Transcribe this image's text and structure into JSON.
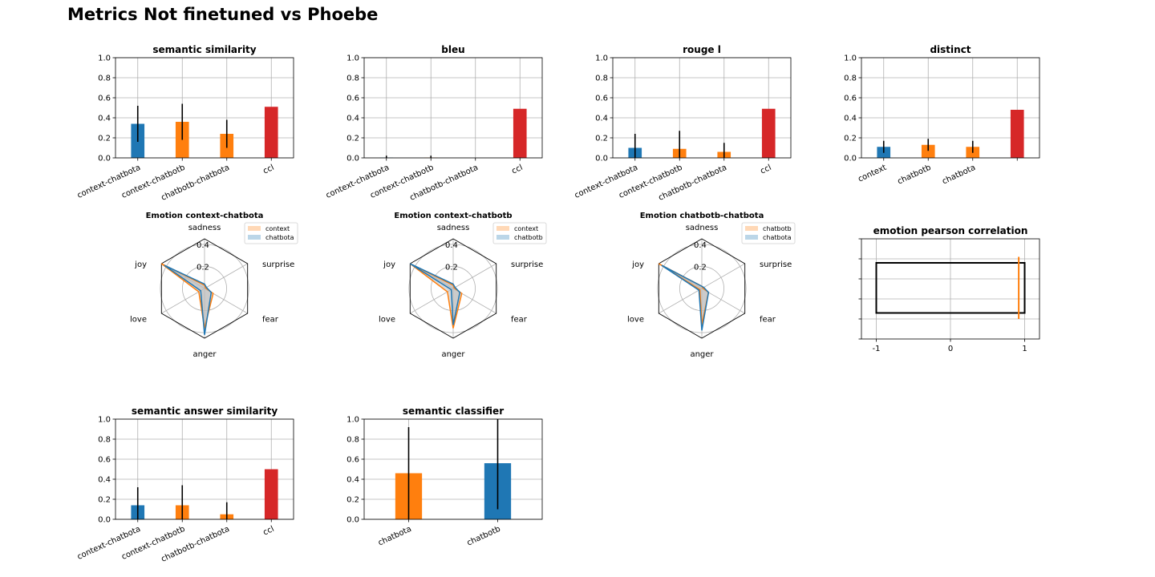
{
  "figure": {
    "title": "Metrics Not finetuned vs Phoebe"
  },
  "colors": {
    "blue": "#1f77b4",
    "orange": "#ff7f0e",
    "red": "#d62728",
    "grid": "#b0b0b0",
    "fill": "#bdbdbd"
  },
  "chart_data": [
    {
      "id": "semantic-similarity",
      "type": "bar",
      "title": "semantic similarity",
      "categories": [
        "context-chatbota",
        "context-chatbotb",
        "chatbotb-chatbota",
        "ccl"
      ],
      "values": [
        0.34,
        0.36,
        0.24,
        0.51
      ],
      "errors": [
        0.18,
        0.18,
        0.14,
        0
      ],
      "colors": [
        "blue",
        "orange",
        "orange",
        "red"
      ],
      "ylim": [
        0,
        1
      ],
      "yticks": [
        "0.0",
        "0.2",
        "0.4",
        "0.6",
        "0.8",
        "1.0"
      ],
      "grid": true
    },
    {
      "id": "bleu",
      "type": "bar",
      "title": "bleu",
      "categories": [
        "context-chatbota",
        "context-chatbotb",
        "chatbotb-chatbota",
        "ccl"
      ],
      "values": [
        0.002,
        0.002,
        0.0,
        0.49
      ],
      "errors": [
        0.02,
        0.02,
        0,
        0
      ],
      "colors": [
        "blue",
        "orange",
        "orange",
        "red"
      ],
      "ylim": [
        0,
        1
      ],
      "yticks": [
        "0.0",
        "0.2",
        "0.4",
        "0.6",
        "0.8",
        "1.0"
      ],
      "grid": true
    },
    {
      "id": "rouge-l",
      "type": "bar",
      "title": "rouge l",
      "categories": [
        "context-chatbota",
        "context-chatbotb",
        "chatbotb-chatbota",
        "ccl"
      ],
      "values": [
        0.1,
        0.09,
        0.06,
        0.49
      ],
      "errors": [
        0.14,
        0.18,
        0.09,
        0
      ],
      "colors": [
        "blue",
        "orange",
        "orange",
        "red"
      ],
      "ylim": [
        0,
        1
      ],
      "yticks": [
        "0.0",
        "0.2",
        "0.4",
        "0.6",
        "0.8",
        "1.0"
      ],
      "grid": true
    },
    {
      "id": "distinct",
      "type": "bar",
      "title": "distinct",
      "categories": [
        "context",
        "chatbotb",
        "chatbota",
        ""
      ],
      "values": [
        0.11,
        0.13,
        0.11,
        0.48
      ],
      "errors": [
        0.06,
        0.06,
        0.06,
        0
      ],
      "colors": [
        "blue",
        "orange",
        "orange",
        "red"
      ],
      "ylim": [
        0,
        1
      ],
      "yticks": [
        "0.0",
        "0.2",
        "0.4",
        "0.6",
        "0.8",
        "1.0"
      ],
      "grid": true
    },
    {
      "id": "emotion-context-chatbota",
      "type": "radar",
      "title": "Emotion context-chatbota",
      "axes": [
        "sadness",
        "surprise",
        "fear",
        "anger",
        "love",
        "joy"
      ],
      "rticks": [
        "0.2",
        "0.4"
      ],
      "rmax": 0.45,
      "series": [
        {
          "name": "context",
          "color": "orange",
          "values": [
            0.03,
            0.01,
            0.09,
            0.36,
            0.06,
            0.45
          ]
        },
        {
          "name": "chatbota",
          "color": "blue",
          "values": [
            0.04,
            0.02,
            0.07,
            0.42,
            0.04,
            0.42
          ]
        }
      ]
    },
    {
      "id": "emotion-context-chatbotb",
      "type": "radar",
      "title": "Emotion context-chatbotb",
      "axes": [
        "sadness",
        "surprise",
        "fear",
        "anger",
        "love",
        "joy"
      ],
      "rticks": [
        "0.2",
        "0.4"
      ],
      "rmax": 0.45,
      "series": [
        {
          "name": "context",
          "color": "orange",
          "values": [
            0.03,
            0.01,
            0.09,
            0.36,
            0.06,
            0.45
          ]
        },
        {
          "name": "chatbotb",
          "color": "blue",
          "values": [
            0.04,
            0.02,
            0.07,
            0.33,
            0.02,
            0.45
          ]
        }
      ]
    },
    {
      "id": "emotion-chatbotb-chatbota",
      "type": "radar",
      "title": "Emotion chatbotb-chatbota",
      "axes": [
        "sadness",
        "surprise",
        "fear",
        "anger",
        "love",
        "joy"
      ],
      "rticks": [
        "0.2",
        "0.4"
      ],
      "rmax": 0.45,
      "series": [
        {
          "name": "chatbotb",
          "color": "orange",
          "values": [
            0.02,
            0.01,
            0.07,
            0.33,
            0.02,
            0.45
          ]
        },
        {
          "name": "chatbota",
          "color": "blue",
          "values": [
            0.02,
            0.02,
            0.07,
            0.38,
            0.03,
            0.42
          ]
        }
      ]
    },
    {
      "id": "emotion-pearson-correlation",
      "type": "boxplot",
      "title": "emotion pearson correlation",
      "xlim": [
        -1.2,
        1.2
      ],
      "xticks": [
        -1,
        0,
        1
      ],
      "xticklabels": [
        "-1",
        "0",
        "1"
      ],
      "box": {
        "q1": -1.0,
        "q3": 1.0,
        "median": 0.92
      }
    },
    {
      "id": "semantic-answer-similarity",
      "type": "bar",
      "title": "semantic answer similarity",
      "categories": [
        "context-chatbota",
        "context-chatbotb",
        "chatbotb-chatbota",
        "ccl"
      ],
      "values": [
        0.14,
        0.14,
        0.05,
        0.5
      ],
      "errors": [
        0.18,
        0.2,
        0.12,
        0
      ],
      "colors": [
        "blue",
        "orange",
        "orange",
        "red"
      ],
      "ylim": [
        0,
        1
      ],
      "yticks": [
        "0.0",
        "0.2",
        "0.4",
        "0.6",
        "0.8",
        "1.0"
      ],
      "grid": true
    },
    {
      "id": "semantic-classifier",
      "type": "bar",
      "title": "semantic classifier",
      "categories": [
        "chatbota",
        "chatbotb"
      ],
      "values": [
        0.46,
        0.56
      ],
      "errors": [
        0.46,
        0.46
      ],
      "colors": [
        "orange",
        "blue"
      ],
      "ylim": [
        0,
        1
      ],
      "yticks": [
        "0.0",
        "0.2",
        "0.4",
        "0.6",
        "0.8",
        "1.0"
      ],
      "grid": true
    }
  ]
}
